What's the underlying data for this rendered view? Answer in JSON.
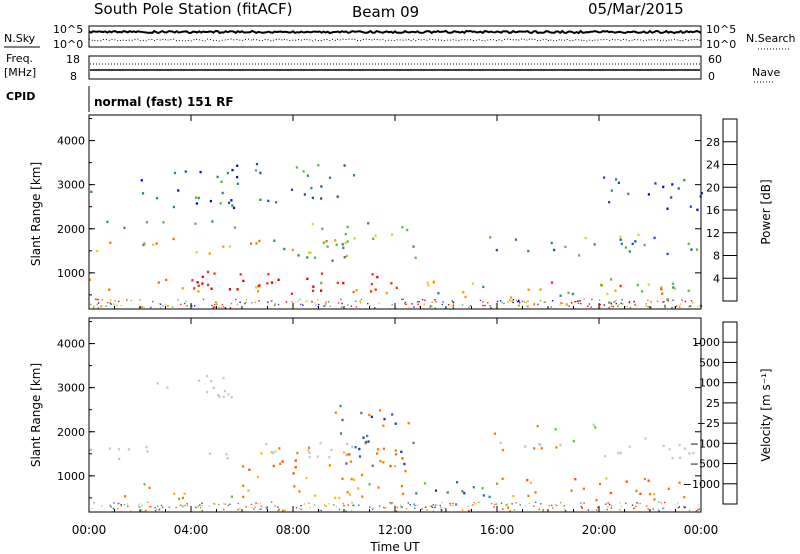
{
  "header": {
    "station": "South Pole Station (fitACF)",
    "beam": "Beam 09",
    "date": "05/Mar/2015"
  },
  "top_panels": {
    "nsky_label": "N.Sky",
    "nsky_ticks": [
      "10^5",
      "10^0"
    ],
    "nsearch_label": "N.Search",
    "nsearch_ticks": [
      "10^5",
      "10^0"
    ],
    "freq_label_1": "Freq.",
    "freq_label_2": "[MHz]",
    "freq_ticks": [
      "18",
      "8"
    ],
    "nave_label": "Nave",
    "nave_ticks": [
      "60",
      "0"
    ],
    "cpid_label": "CPID",
    "cpid_value": "normal (fast) 151 RF"
  },
  "chart_data": [
    {
      "type": "heatmap",
      "name": "power",
      "ylabel": "Slant Range [km]",
      "ylim": [
        180,
        4580
      ],
      "yticks": [
        1000,
        2000,
        3000,
        4000
      ],
      "xlim_hours": [
        0,
        24
      ],
      "colorbar": {
        "label": "Power [dB]",
        "ticks": [
          "28",
          "24",
          "20",
          "16",
          "12",
          "8",
          "4"
        ],
        "colors": [
          "#0a0adc",
          "#1e50b4",
          "#2e8a6e",
          "#5cb84a",
          "#e8d020",
          "#f0a000",
          "#ff6a00",
          "#ff2a10",
          "#e00000"
        ]
      }
    },
    {
      "type": "heatmap",
      "name": "velocity",
      "ylabel": "Slant Range [km]",
      "ylim": [
        180,
        4580
      ],
      "yticks": [
        1000,
        2000,
        3000,
        4000
      ],
      "xlim_hours": [
        0,
        24
      ],
      "colorbar": {
        "label": "Velocity [m s⁻¹]",
        "ticks": [
          "1000",
          "500",
          "100",
          "25",
          "−25",
          "−100",
          "−500",
          "−1000"
        ],
        "colors": [
          "#1e3aa8",
          "#2a6ab8",
          "#3a8c6a",
          "#62c040",
          "#c8c8c0",
          "#c8c8c0",
          "#f0c020",
          "#f08000",
          "#ff5000",
          "#ff2000"
        ]
      }
    }
  ],
  "xaxis": {
    "label": "Time UT",
    "ticks": [
      "00:00",
      "04:00",
      "08:00",
      "12:00",
      "16:00",
      "20:00",
      "00:00"
    ]
  },
  "scatter_regions": {
    "power": [
      {
        "t0": 0.0,
        "t1": 12.8,
        "r0": 550,
        "r1": 900,
        "c": [
          3,
          4,
          5,
          6,
          7,
          8,
          8
        ]
      },
      {
        "t0": 4.0,
        "t1": 12.0,
        "r0": 550,
        "r1": 1050,
        "c": [
          7,
          8,
          8,
          7
        ]
      },
      {
        "t0": 0.0,
        "t1": 10.5,
        "r0": 1400,
        "r1": 1800,
        "c": [
          2,
          3,
          4,
          5,
          6
        ]
      },
      {
        "t0": 8.0,
        "t1": 12.8,
        "r0": 1300,
        "r1": 2200,
        "c": [
          2,
          3,
          4,
          3
        ]
      },
      {
        "t0": 0.0,
        "t1": 6.5,
        "r0": 2000,
        "r1": 2200,
        "c": [
          1,
          2,
          3,
          2
        ]
      },
      {
        "t0": 1.5,
        "t1": 6.0,
        "r0": 2500,
        "r1": 3500,
        "c": [
          0,
          1,
          2,
          3
        ]
      },
      {
        "t0": 0.0,
        "t1": 0.6,
        "r0": 2800,
        "r1": 3050,
        "c": [
          0,
          1,
          2
        ]
      },
      {
        "t0": 6.5,
        "t1": 10.5,
        "r0": 2600,
        "r1": 3500,
        "c": [
          1,
          2,
          3
        ]
      },
      {
        "t0": 12.8,
        "t1": 15.5,
        "r0": 280,
        "r1": 900,
        "c": [
          1,
          2,
          3,
          4,
          5
        ]
      },
      {
        "t0": 15.5,
        "t1": 24.0,
        "r0": 250,
        "r1": 900,
        "c": [
          2,
          3,
          4,
          5,
          6,
          7
        ]
      },
      {
        "t0": 15.5,
        "t1": 24.0,
        "r0": 1400,
        "r1": 1900,
        "c": [
          1,
          2,
          3,
          4
        ]
      },
      {
        "t0": 20.0,
        "t1": 24.0,
        "r0": 2400,
        "r1": 3200,
        "c": [
          0,
          1,
          2
        ]
      }
    ],
    "velocity": [
      {
        "t0": 0.0,
        "t1": 12.5,
        "r0": 500,
        "r1": 850,
        "c": [
          7,
          7,
          6,
          3
        ]
      },
      {
        "t0": 6.0,
        "t1": 12.5,
        "r0": 800,
        "r1": 1700,
        "c": [
          7,
          7,
          6,
          8
        ]
      },
      {
        "t0": 0.0,
        "t1": 10.5,
        "r0": 1400,
        "r1": 1800,
        "c": [
          4,
          4,
          5,
          4
        ]
      },
      {
        "t0": 1.0,
        "t1": 6.0,
        "r0": 2800,
        "r1": 3300,
        "c": [
          4,
          5
        ]
      },
      {
        "t0": 9.5,
        "t1": 12.8,
        "r0": 1200,
        "r1": 2700,
        "c": [
          0,
          1,
          2,
          7
        ]
      },
      {
        "t0": 12.5,
        "t1": 16.0,
        "r0": 250,
        "r1": 900,
        "c": [
          2,
          2,
          3,
          0,
          1
        ]
      },
      {
        "t0": 16.0,
        "t1": 24.0,
        "r0": 450,
        "r1": 1000,
        "c": [
          7,
          8,
          7,
          6
        ]
      },
      {
        "t0": 19.5,
        "t1": 24.0,
        "r0": 1400,
        "r1": 1900,
        "c": [
          4,
          4,
          5
        ]
      },
      {
        "t0": 15.5,
        "t1": 20.0,
        "r0": 1600,
        "r1": 2200,
        "c": [
          4,
          7,
          3
        ]
      }
    ]
  }
}
